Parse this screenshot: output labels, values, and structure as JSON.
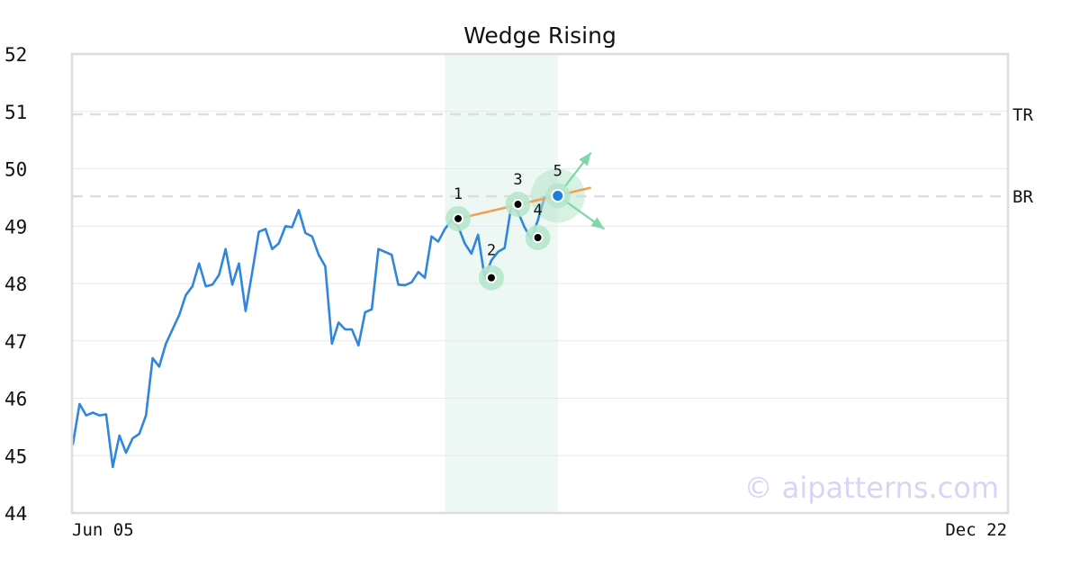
{
  "chart_data": {
    "type": "line",
    "title": "Wedge Rising",
    "ylim": [
      44,
      52
    ],
    "y_ticks": [
      44,
      45,
      46,
      47,
      48,
      49,
      50,
      51,
      52
    ],
    "x_tick_labels": [
      "Jun 05",
      "Dec 22"
    ],
    "grid": true,
    "colors": {
      "price_line": "#2f86dc",
      "trend_line": "#f0a050",
      "highlight": "#e6f4ef",
      "point_halo": "#b7e6cc",
      "arrow": "#7fd6a6",
      "reference_line": "#dddddd",
      "frame": "#dddddd",
      "last_point": "#1e7fe0"
    },
    "series": [
      {
        "values": [
          45.2,
          45.9,
          45.7,
          45.75,
          45.7,
          45.72,
          44.8,
          45.35,
          45.05,
          45.3,
          45.38,
          45.7,
          46.7,
          46.55,
          46.95,
          47.2,
          47.45,
          47.8,
          47.95,
          48.35,
          47.95,
          47.98,
          48.15,
          48.6,
          47.98,
          48.35,
          47.52,
          48.2,
          48.9,
          48.95,
          48.6,
          48.7,
          49.0,
          48.98,
          49.28,
          48.88,
          48.82,
          48.5,
          48.3,
          46.95,
          47.32,
          47.2,
          47.2,
          46.92,
          47.5,
          47.55,
          48.6,
          48.55,
          48.5,
          47.98,
          47.97,
          48.02,
          48.2,
          48.1,
          48.82,
          48.73,
          48.95,
          49.1,
          49.0,
          48.7,
          48.52,
          48.85,
          48.1,
          48.4,
          48.55,
          48.62,
          49.35,
          49.25,
          48.98,
          48.78,
          49.1,
          49.5
        ]
      }
    ],
    "highlight_range": [
      56,
      73
    ],
    "reference_lines": [
      {
        "label": "TR",
        "value": 50.95
      },
      {
        "label": "BR",
        "value": 49.52
      }
    ],
    "pattern_points": [
      {
        "label": "1",
        "index": 58,
        "value": 49.13
      },
      {
        "label": "2",
        "index": 63,
        "value": 48.1
      },
      {
        "label": "3",
        "index": 67,
        "value": 49.38
      },
      {
        "label": "4",
        "index": 70,
        "value": 48.8
      },
      {
        "label": "5",
        "index": 73,
        "value": 49.53
      }
    ],
    "trend_line": {
      "from": {
        "index": 58,
        "value": 49.13
      },
      "to": {
        "index": 78,
        "value": 49.67
      }
    },
    "arrow_targets": [
      {
        "index": 78,
        "value": 50.28
      },
      {
        "index": 80,
        "value": 48.95
      }
    ],
    "watermark": "© aipatterns.com"
  }
}
